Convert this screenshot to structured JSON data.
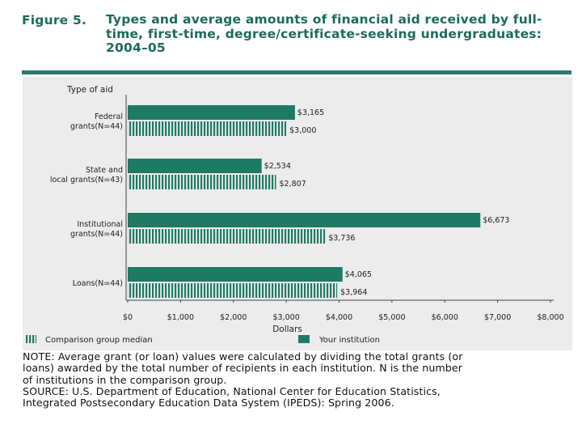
{
  "figure": {
    "label": "Figure 5.",
    "title": "Types and average amounts of financial aid received by full-time, first-time, degree/certificate-seeking undergraduates: 2004–05"
  },
  "colors": {
    "accent": "#1d6b5b",
    "bar_institution": "#1f7a63",
    "bar_comparison": "#1f7a63",
    "panel": "#ececec"
  },
  "chart_data": {
    "type": "bar",
    "orientation": "horizontal",
    "ylabel": "Type of aid",
    "xlabel": "Dollars",
    "xlim": [
      0,
      8000
    ],
    "x_ticks": [
      "$0",
      "$1,000",
      "$2,000",
      "$3,000",
      "$4,000",
      "$5,000",
      "$6,000",
      "$7,000",
      "$8,000"
    ],
    "categories": [
      [
        "Federal",
        "grants(N=44)"
      ],
      [
        "State and",
        "local grants(N=43)"
      ],
      [
        "Institutional",
        "grants(N=44)"
      ],
      [
        "Loans(N=44)"
      ]
    ],
    "series": [
      {
        "name": "Your institution",
        "values": [
          3165,
          2534,
          6673,
          4065
        ],
        "labels": [
          "$3,165",
          "$2,534",
          "$6,673",
          "$4,065"
        ]
      },
      {
        "name": "Comparison group median",
        "values": [
          3000,
          2807,
          3736,
          3964
        ],
        "labels": [
          "$3,000",
          "$2,807",
          "$3,736",
          "$3,964"
        ]
      }
    ],
    "legend": [
      "Comparison group median",
      "Your institution"
    ]
  },
  "note": {
    "note_text": "NOTE: Average grant (or loan) values were calculated by dividing the total grants (or\nloans) awarded by the total number of recipients in each institution. N is the number\nof institutions in the comparison group.",
    "source_text": "SOURCE: U.S. Department of Education, National Center for Education Statistics,\nIntegrated Postsecondary Education Data System (IPEDS): Spring 2006."
  }
}
